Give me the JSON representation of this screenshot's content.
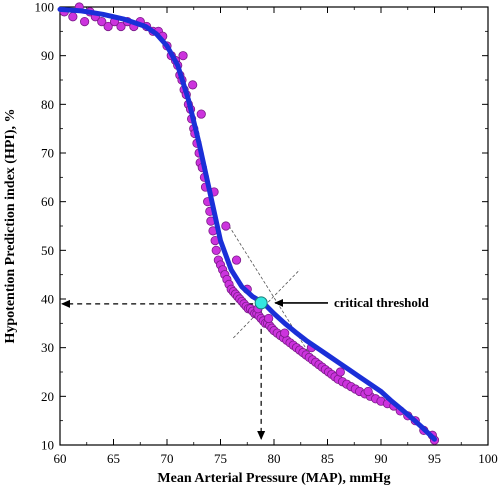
{
  "chart_data": {
    "type": "scatter",
    "xlabel": "Mean Arterial Pressure (MAP), mmHg",
    "ylabel": "Hypotention Prediction index (HPI), %",
    "xlim": [
      60,
      100
    ],
    "ylim": [
      10,
      100
    ],
    "xticks": [
      60,
      65,
      70,
      75,
      80,
      85,
      90,
      95,
      100
    ],
    "yticks": [
      10,
      20,
      30,
      40,
      50,
      60,
      70,
      80,
      90,
      100
    ],
    "grid": false,
    "colors": {
      "points_fill": "#cc33dd",
      "points_stroke": "#7a1a88",
      "curve": "#1a2fd8",
      "threshold_marker": "#33e8e0"
    },
    "series": [
      {
        "type": "scatter",
        "x": [
          60.4,
          61.2,
          61.8,
          62.3,
          62.8,
          63.3,
          63.9,
          64.5,
          65.1,
          65.7,
          66.3,
          66.9,
          67.5,
          68.1,
          68.7,
          69.2,
          69.6,
          70.0,
          70.4,
          70.8,
          71.0,
          71.2,
          71.4,
          71.6,
          71.8,
          72.0,
          72.2,
          72.3,
          72.5,
          72.6,
          72.8,
          73.0,
          73.1,
          73.3,
          73.5,
          73.6,
          73.8,
          74.0,
          74.1,
          74.3,
          74.5,
          74.6,
          74.8,
          75.0,
          75.2,
          75.4,
          75.6,
          75.8,
          76.0,
          76.2,
          76.4,
          76.6,
          76.8,
          77.0,
          77.2,
          77.4,
          77.6,
          77.8,
          78.0,
          78.2,
          78.4,
          78.6,
          78.8,
          79.0,
          79.2,
          79.4,
          79.6,
          79.8,
          80.0,
          80.3,
          80.6,
          80.9,
          81.2,
          81.5,
          81.8,
          82.1,
          82.4,
          82.7,
          83.0,
          83.3,
          83.6,
          83.9,
          84.2,
          84.5,
          84.8,
          85.1,
          85.4,
          85.7,
          86.0,
          86.4,
          86.8,
          87.2,
          87.6,
          88.0,
          88.5,
          89.0,
          89.5,
          90.0,
          90.6,
          91.2,
          91.8,
          92.5,
          93.2,
          94.0,
          94.8,
          95.0,
          71.5,
          72.4,
          73.2,
          74.4,
          75.5,
          76.5,
          77.5,
          78.5,
          79.5,
          81.0,
          83.5,
          86.2,
          88.8
        ],
        "y": [
          99,
          98,
          100,
          97,
          99,
          98,
          97,
          96,
          97,
          96,
          97,
          96,
          97,
          96,
          95,
          95,
          94,
          92,
          90,
          89,
          88,
          86,
          85,
          83,
          82,
          80,
          79,
          77,
          75,
          74,
          72,
          70,
          68,
          67,
          65,
          63,
          60,
          58,
          56,
          54,
          52,
          50,
          48,
          47,
          46,
          45,
          44,
          43,
          42,
          41.5,
          41,
          40.5,
          40,
          39.5,
          39,
          38.5,
          38,
          38,
          37.5,
          37,
          37,
          36.5,
          36,
          35.5,
          35,
          35,
          34.5,
          34,
          33.5,
          33,
          32.5,
          32,
          31.5,
          31,
          30.5,
          30,
          29.5,
          29,
          28.5,
          28,
          27.5,
          27,
          26.5,
          26,
          25.5,
          25,
          24.5,
          24,
          23.5,
          23,
          22.5,
          22,
          21.5,
          21,
          20.5,
          20,
          19.5,
          19,
          18.5,
          18,
          17,
          16,
          15,
          13,
          12,
          11,
          90,
          84,
          78,
          62,
          55,
          48,
          42,
          38,
          36,
          33,
          30,
          25,
          21
        ]
      },
      {
        "type": "line",
        "x": [
          60,
          62,
          64,
          66,
          68,
          69,
          70,
          71,
          72,
          73,
          74,
          75,
          76,
          77,
          78,
          79,
          80,
          81,
          82,
          83,
          84,
          85,
          86,
          87,
          88,
          89,
          90,
          91,
          92,
          93,
          94,
          95
        ],
        "y": [
          99.5,
          99.2,
          98.5,
          97.5,
          96,
          94.5,
          92,
          88,
          81,
          72,
          62,
          52,
          46,
          42.5,
          40.5,
          39.2,
          37,
          35,
          33.2,
          31.5,
          30,
          28.5,
          27,
          25.5,
          24,
          22.5,
          21,
          19,
          17.2,
          15.3,
          13.3,
          11.2
        ]
      }
    ],
    "annotations": {
      "threshold_label": "critical threshold",
      "threshold_point": {
        "x": 78.8,
        "y": 39.2
      },
      "threshold_y_axis": 39,
      "threshold_x_axis": 78.8,
      "tangent_lines": [
        {
          "from": [
            75.8,
            55
          ],
          "to": [
            83.8,
            27
          ]
        },
        {
          "from": [
            76.2,
            32
          ],
          "to": [
            82.4,
            46
          ]
        }
      ]
    }
  }
}
